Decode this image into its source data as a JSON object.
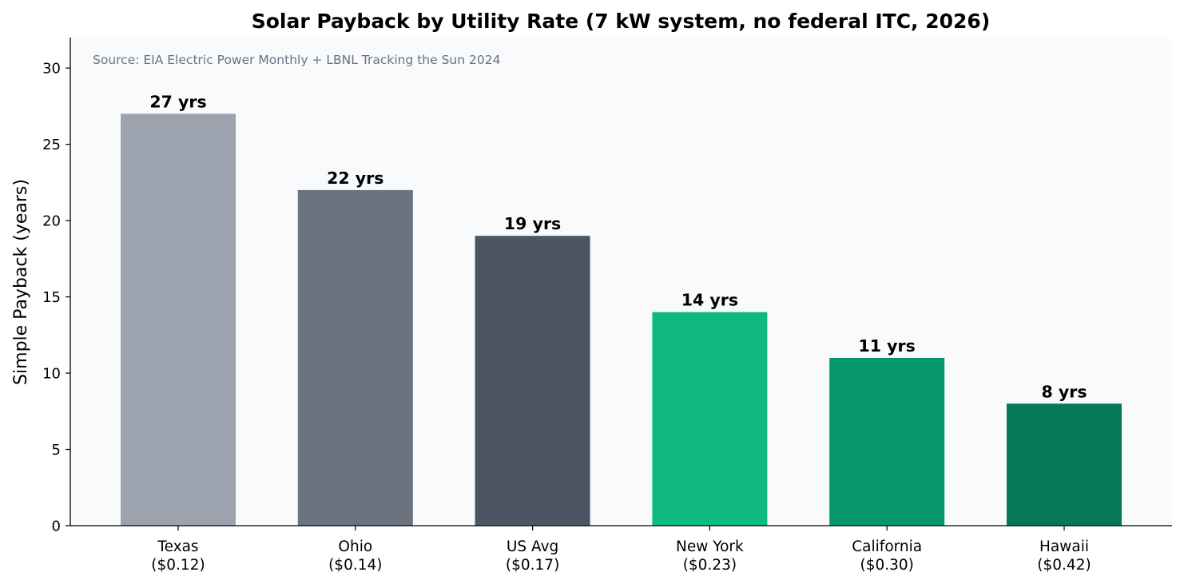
{
  "chart_data": {
    "type": "bar",
    "title": "Solar Payback by Utility Rate (7 kW system, no federal ITC, 2026)",
    "annotation": "Source: EIA Electric Power Monthly + LBNL Tracking the Sun 2024",
    "ylabel": "Simple Payback (years)",
    "xlabel": "",
    "ylim": [
      0,
      32
    ],
    "yticks": [
      0,
      5,
      10,
      15,
      20,
      25,
      30
    ],
    "grid": false,
    "categories": [
      [
        "Texas",
        "($0.12)"
      ],
      [
        "Ohio",
        "($0.14)"
      ],
      [
        "US Avg",
        "($0.17)"
      ],
      [
        "New York",
        "($0.23)"
      ],
      [
        "California",
        "($0.30)"
      ],
      [
        "Hawaii",
        "($0.42)"
      ]
    ],
    "values": [
      27,
      22,
      19,
      14,
      11,
      8
    ],
    "data_labels": [
      "27 yrs",
      "22 yrs",
      "19 yrs",
      "14 yrs",
      "11 yrs",
      "8 yrs"
    ],
    "colors": [
      "#9ca3af",
      "#6b7280",
      "#4b5563",
      "#10b981",
      "#059669",
      "#047857"
    ],
    "plot_background": "#f8fafc"
  }
}
